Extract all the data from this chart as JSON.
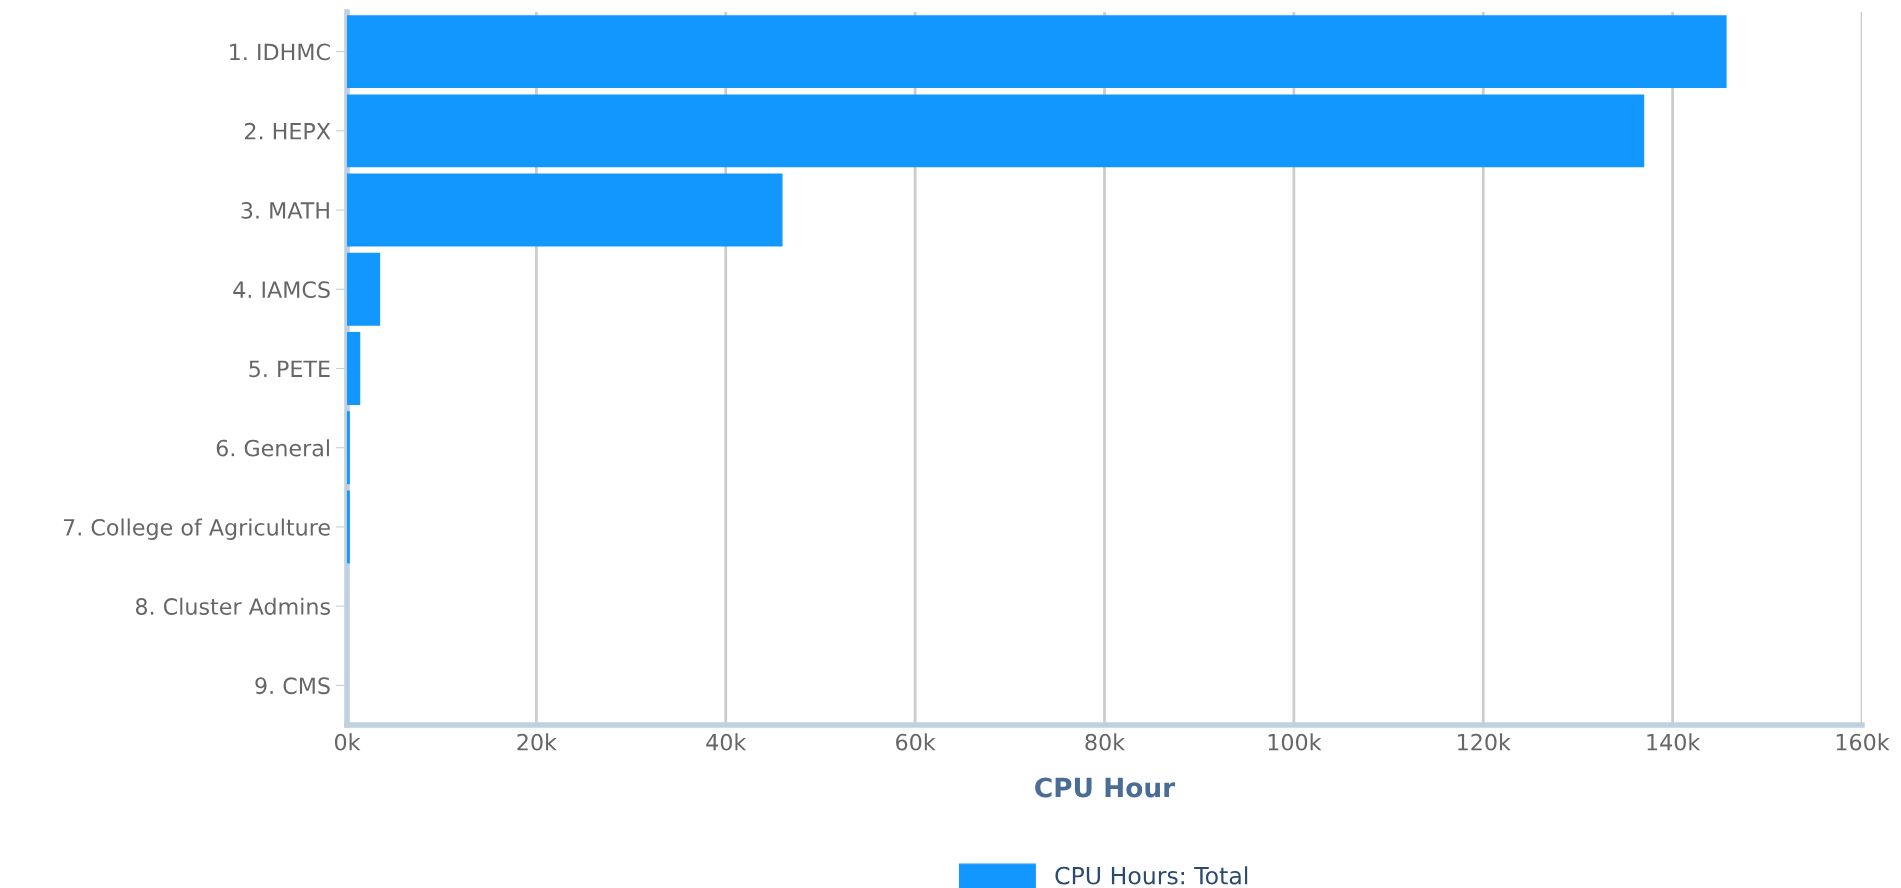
{
  "chart_data": {
    "type": "bar",
    "orientation": "horizontal",
    "xlabel": "CPU Hour",
    "categories": [
      "1. IDHMC",
      "2. HEPX",
      "3. MATH",
      "4. IAMCS",
      "5. PETE",
      "6. General",
      "7. College of Agriculture",
      "8. Cluster Admins",
      "9. CMS"
    ],
    "series": [
      {
        "name": "CPU Hours: Total",
        "color": "#1297ff",
        "values": [
          145700,
          137000,
          46000,
          3500,
          1400,
          300,
          300,
          0,
          0
        ]
      }
    ],
    "xlim": [
      0,
      160000
    ],
    "xticks": [
      {
        "value": 0,
        "label": "0k"
      },
      {
        "value": 20000,
        "label": "20k"
      },
      {
        "value": 40000,
        "label": "40k"
      },
      {
        "value": 60000,
        "label": "60k"
      },
      {
        "value": 80000,
        "label": "80k"
      },
      {
        "value": 100000,
        "label": "100k"
      },
      {
        "value": 120000,
        "label": "120k"
      },
      {
        "value": 140000,
        "label": "140k"
      },
      {
        "value": 160000,
        "label": "160k"
      }
    ],
    "grid": "x",
    "legend": "bottom"
  }
}
